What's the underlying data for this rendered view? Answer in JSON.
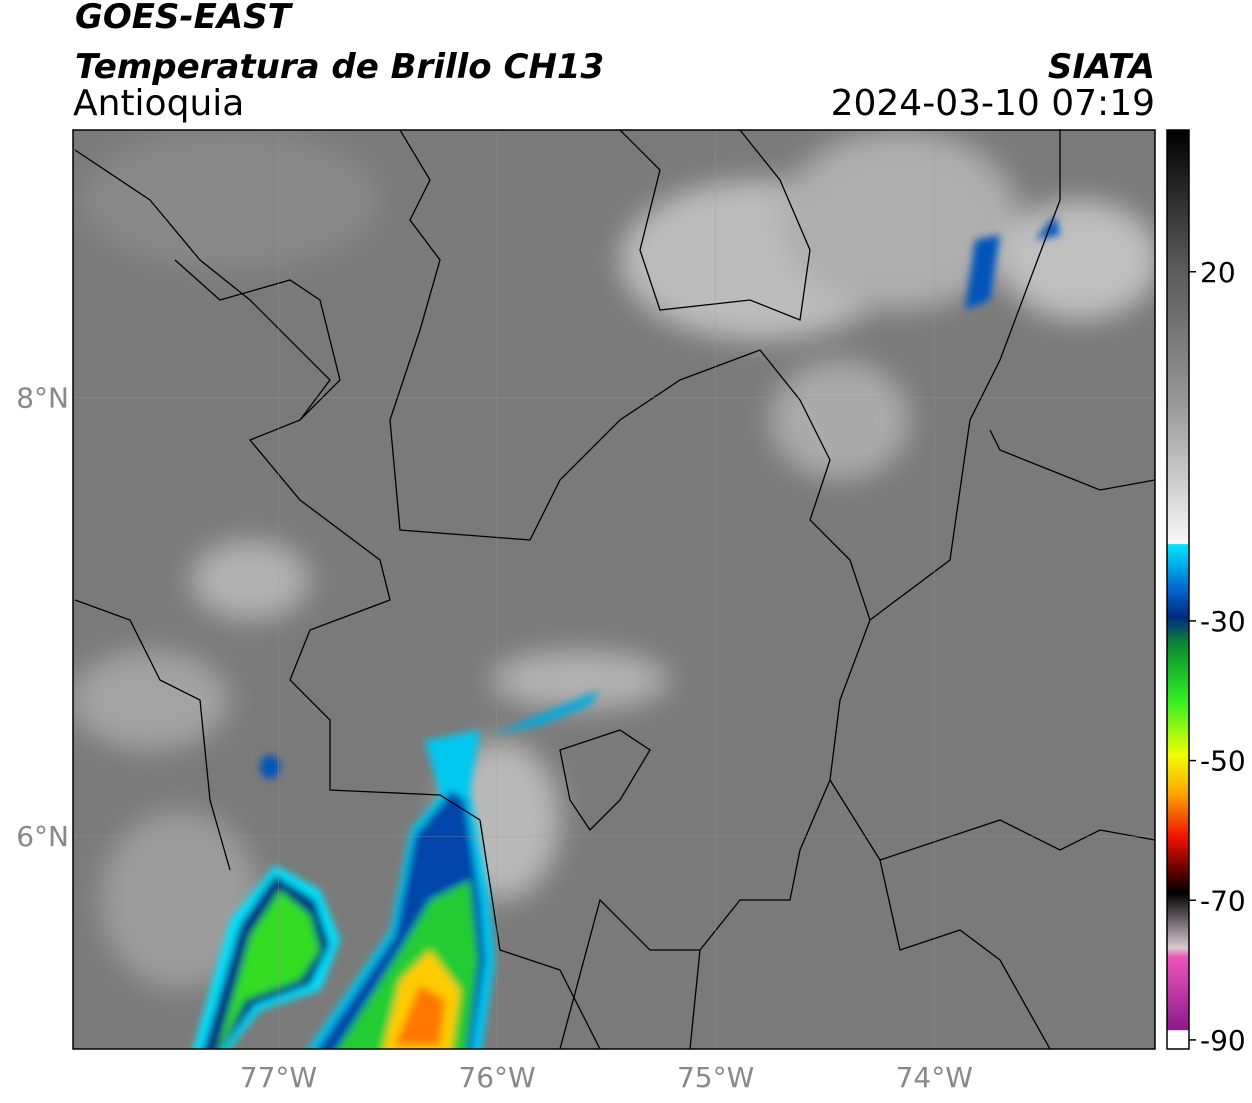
{
  "header": {
    "satellite": "GOES-EAST",
    "product": "Temperatura de Brillo CH13",
    "region": "Antioquia",
    "agency": "SIATA",
    "datetime": "2024-03-10 07:19"
  },
  "map": {
    "xlim": [
      -77.94,
      -72.99
    ],
    "ylim": [
      5.03,
      9.22
    ],
    "xticks": [
      {
        "value": -77,
        "label": "77°W"
      },
      {
        "value": -76,
        "label": "76°W"
      },
      {
        "value": -75,
        "label": "75°W"
      },
      {
        "value": -74,
        "label": "74°W"
      }
    ],
    "yticks": [
      {
        "value": 6,
        "label": "6°N"
      },
      {
        "value": 8,
        "label": "8°N"
      }
    ]
  },
  "colorbar": {
    "lim": [
      -91.3,
      40.3
    ],
    "ticks": [
      20,
      -30,
      -50,
      -70,
      -90
    ]
  }
}
